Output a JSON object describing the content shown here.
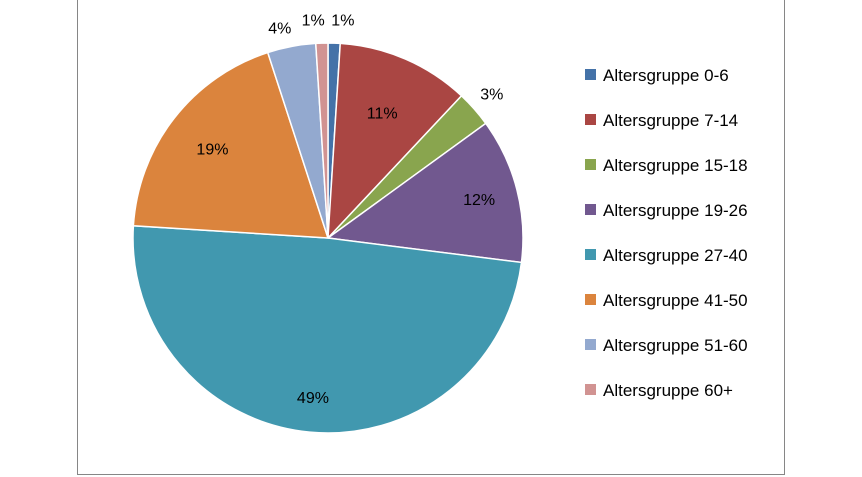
{
  "chart_data": {
    "type": "pie",
    "title": "",
    "legend_position": "right",
    "categories": [
      "Altersgruppe 0-6",
      "Altersgruppe 7-14",
      "Altersgruppe 15-18",
      "Altersgruppe 19-26",
      "Altersgruppe 27-40",
      "Altersgruppe 41-50",
      "Altersgruppe 51-60",
      "Altersgruppe 60+"
    ],
    "values": [
      1,
      11,
      3,
      12,
      49,
      19,
      4,
      1
    ],
    "labels": [
      "1%",
      "11%",
      "3%",
      "12%",
      "49%",
      "19%",
      "4%",
      "1%"
    ],
    "colors": [
      "#4472A8",
      "#AA4643",
      "#89A54E",
      "#71588F",
      "#4198AF",
      "#DB843D",
      "#93A9CF",
      "#D19392"
    ]
  }
}
